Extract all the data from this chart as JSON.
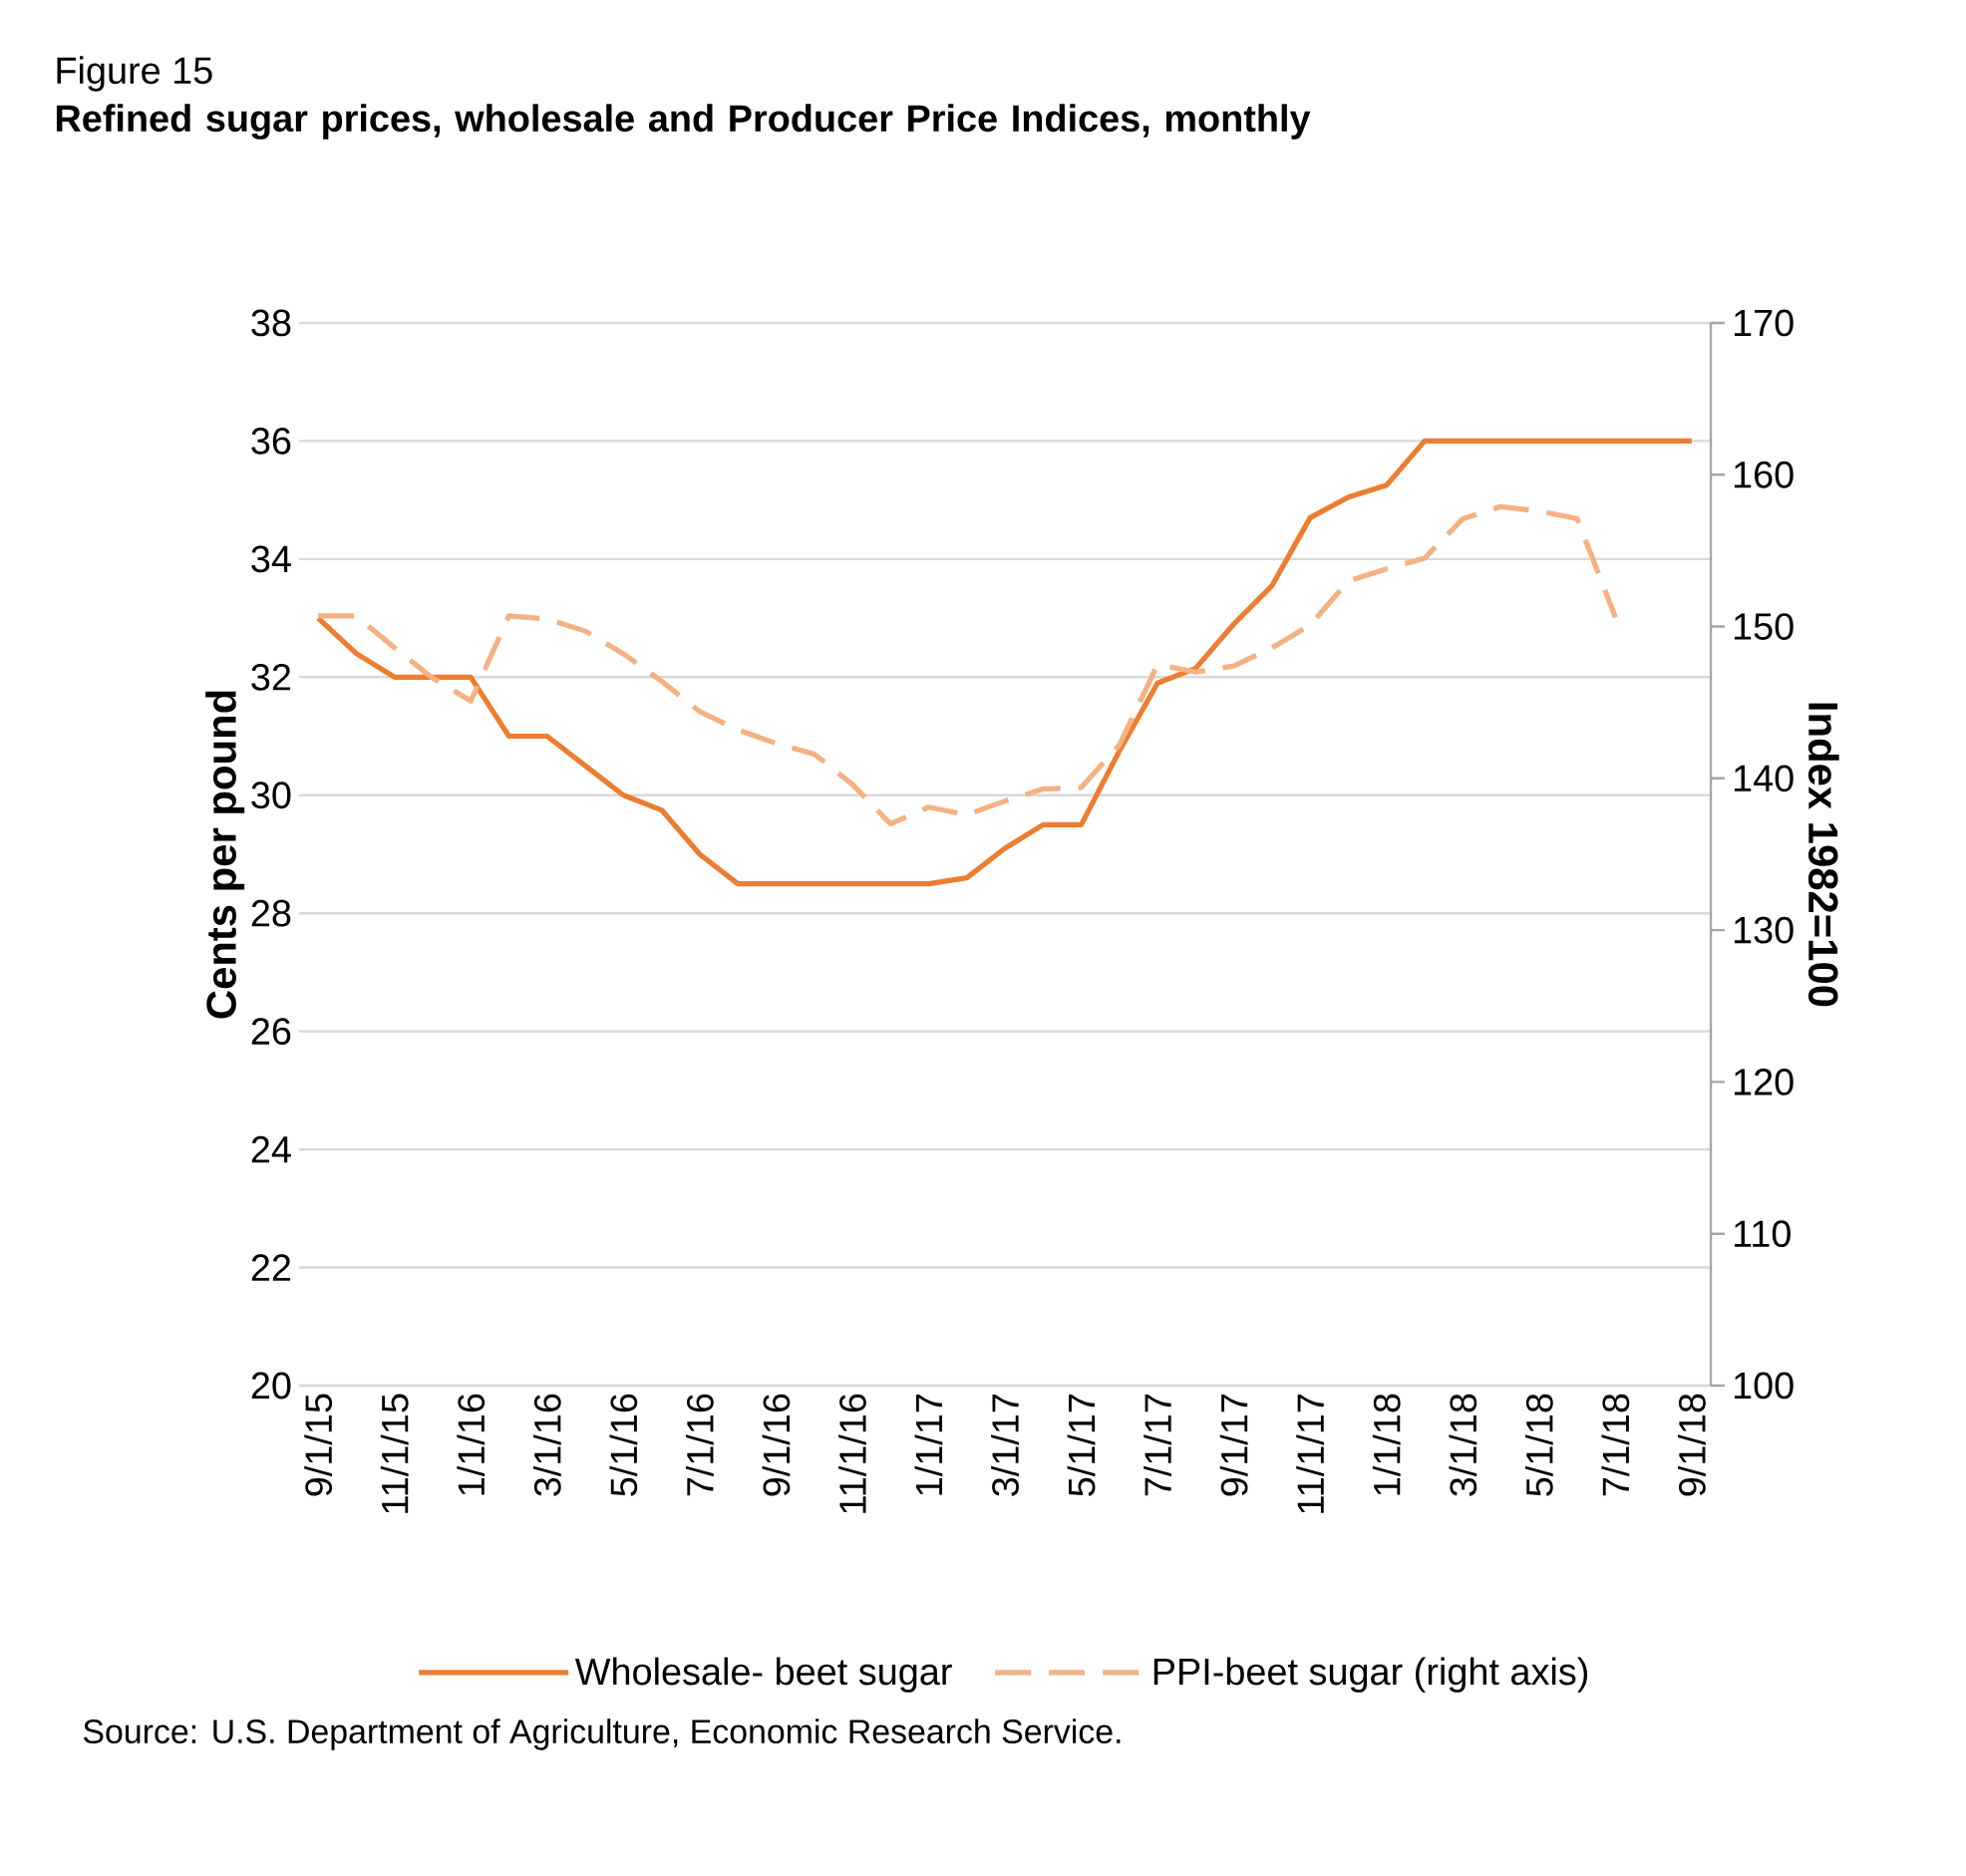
{
  "chart_data": {
    "type": "line",
    "title": "Figure 15",
    "subtitle": "Refined sugar prices, wholesale and Producer Price Indices, monthly",
    "categories": [
      "9/1/15",
      null,
      "11/1/15",
      null,
      "1/1/16",
      null,
      "3/1/16",
      null,
      "5/1/16",
      null,
      "7/1/16",
      null,
      "9/1/16",
      null,
      "11/1/16",
      null,
      "1/1/17",
      null,
      "3/1/17",
      null,
      "5/1/17",
      null,
      "7/1/17",
      null,
      "9/1/17",
      null,
      "11/1/17",
      null,
      "1/1/18",
      null,
      "3/1/18",
      null,
      "5/1/18",
      null,
      "7/1/18",
      null,
      "9/1/18"
    ],
    "series": [
      {
        "name": "Wholesale- beet sugar",
        "color": "#ed7d31",
        "line_style": "solid",
        "values": [
          33,
          32.4,
          32,
          32,
          32,
          31,
          31,
          30.5,
          30,
          29.75,
          29,
          28.5,
          28.5,
          28.5,
          28.5,
          28.5,
          28.5,
          28.6,
          29.1,
          29.5,
          29.5,
          30.75,
          31.9,
          32.15,
          32.9,
          33.55,
          34.7,
          35.05,
          35.25,
          36,
          36,
          36,
          36,
          36,
          36,
          36,
          36
        ]
      },
      {
        "name": "PPI-beet sugar (right axis)",
        "color": "#f4b183",
        "line_style": "dashed",
        "axis": "y2",
        "values": [
          150.7,
          150.7,
          148.6,
          146.6,
          145.1,
          150.7,
          150.5,
          149.7,
          148.2,
          146.4,
          144.4,
          143.2,
          142.3,
          141.6,
          139.6,
          137.0,
          138.1,
          137.6,
          138.5,
          139.3,
          139.4,
          142.2,
          147.5,
          147.0,
          147.4,
          148.6,
          150.1,
          153.0,
          153.8,
          154.5,
          157.1,
          157.9,
          157.6,
          157.1,
          150.6,
          null,
          null
        ]
      }
    ],
    "ylabel": "Cents per pound",
    "y2label": "Index 1982=100",
    "ylim": [
      20,
      38
    ],
    "yticks": [
      20,
      22,
      24,
      26,
      28,
      30,
      32,
      34,
      36,
      38
    ],
    "y2lim": [
      100,
      170
    ],
    "y2ticks": [
      100,
      110,
      120,
      130,
      140,
      150,
      160,
      170
    ],
    "grid": "y",
    "legend": "bottom",
    "annotations": [
      "Source: U.S. Department of Agriculture, Economic Research Service."
    ]
  }
}
